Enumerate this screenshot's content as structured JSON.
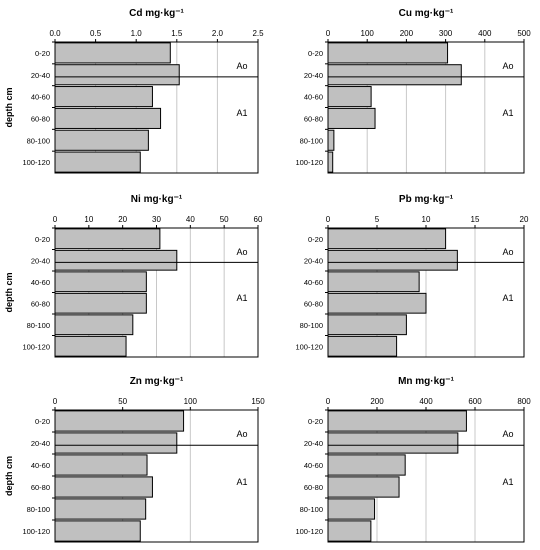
{
  "figure": {
    "row_labels": [
      "0-20",
      "20-40",
      "40-60",
      "60-80",
      "80-100",
      "100-120"
    ],
    "y_axis_label": "depth cm",
    "horizon_labels": [
      "Ao",
      "A1"
    ],
    "colors": {
      "bar_fill": "#c0c0c0",
      "bar_stroke": "#000000",
      "grid": "#c8c8c8",
      "axis": "#000000"
    }
  },
  "chart_data": [
    {
      "type": "bar",
      "orientation": "horizontal",
      "title": "Cd mg·kg⁻¹",
      "categories": [
        "0-20",
        "20-40",
        "40-60",
        "60-80",
        "80-100",
        "100-120"
      ],
      "values": [
        1.42,
        1.53,
        1.2,
        1.3,
        1.15,
        1.05
      ],
      "xlim": [
        0,
        2.5
      ],
      "ticks": [
        0,
        0.5,
        1,
        1.5,
        2,
        2.5
      ],
      "tick_labels": [
        "0.0",
        "0.5",
        "1.0",
        "1.5",
        "2.0",
        "2.5"
      ],
      "grid": true,
      "horizons": [
        "Ao",
        "A1"
      ]
    },
    {
      "type": "bar",
      "orientation": "horizontal",
      "title": "Cu mg·kg⁻¹",
      "categories": [
        "0-20",
        "20-40",
        "40-60",
        "60-80",
        "80-100",
        "100-120"
      ],
      "values": [
        305,
        340,
        110,
        120,
        15,
        12
      ],
      "xlim": [
        0,
        500
      ],
      "ticks": [
        0,
        100,
        200,
        300,
        400,
        500
      ],
      "tick_labels": [
        "0",
        "100",
        "200",
        "300",
        "400",
        "500"
      ],
      "grid": true,
      "horizons": [
        "Ao",
        "A1"
      ]
    },
    {
      "type": "bar",
      "orientation": "horizontal",
      "title": "Ni mg·kg⁻¹",
      "categories": [
        "0-20",
        "20-40",
        "40-60",
        "60-80",
        "80-100",
        "100-120"
      ],
      "values": [
        31,
        36,
        27,
        27,
        23,
        21
      ],
      "xlim": [
        0,
        60
      ],
      "ticks": [
        0,
        10,
        20,
        30,
        40,
        50,
        60
      ],
      "tick_labels": [
        "0",
        "10",
        "20",
        "30",
        "40",
        "50",
        "60"
      ],
      "grid": true,
      "horizons": [
        "Ao",
        "A1"
      ]
    },
    {
      "type": "bar",
      "orientation": "horizontal",
      "title": "Pb mg·kg⁻¹",
      "categories": [
        "0-20",
        "20-40",
        "40-60",
        "60-80",
        "80-100",
        "100-120"
      ],
      "values": [
        12,
        13.2,
        9.3,
        10,
        8,
        7
      ],
      "xlim": [
        0,
        20
      ],
      "ticks": [
        0,
        5,
        10,
        15,
        20
      ],
      "tick_labels": [
        "0",
        "5",
        "10",
        "15",
        "20"
      ],
      "grid": true,
      "horizons": [
        "Ao",
        "A1"
      ]
    },
    {
      "type": "bar",
      "orientation": "horizontal",
      "title": "Zn mg·kg⁻¹",
      "categories": [
        "0-20",
        "20-40",
        "40-60",
        "60-80",
        "80-100",
        "100-120"
      ],
      "values": [
        95,
        90,
        68,
        72,
        67,
        63
      ],
      "xlim": [
        0,
        150
      ],
      "ticks": [
        0,
        50,
        100,
        150
      ],
      "tick_labels": [
        "0",
        "50",
        "100",
        "150"
      ],
      "grid": true,
      "horizons": [
        "Ao",
        "A1"
      ]
    },
    {
      "type": "bar",
      "orientation": "horizontal",
      "title": "Mn mg·kg⁻¹",
      "categories": [
        "0-20",
        "20-40",
        "40-60",
        "60-80",
        "80-100",
        "100-120"
      ],
      "values": [
        565,
        530,
        315,
        290,
        190,
        175
      ],
      "xlim": [
        0,
        800
      ],
      "ticks": [
        0,
        200,
        400,
        600,
        800
      ],
      "tick_labels": [
        "0",
        "200",
        "400",
        "600",
        "800"
      ],
      "grid": true,
      "horizons": [
        "Ao",
        "A1"
      ]
    }
  ]
}
